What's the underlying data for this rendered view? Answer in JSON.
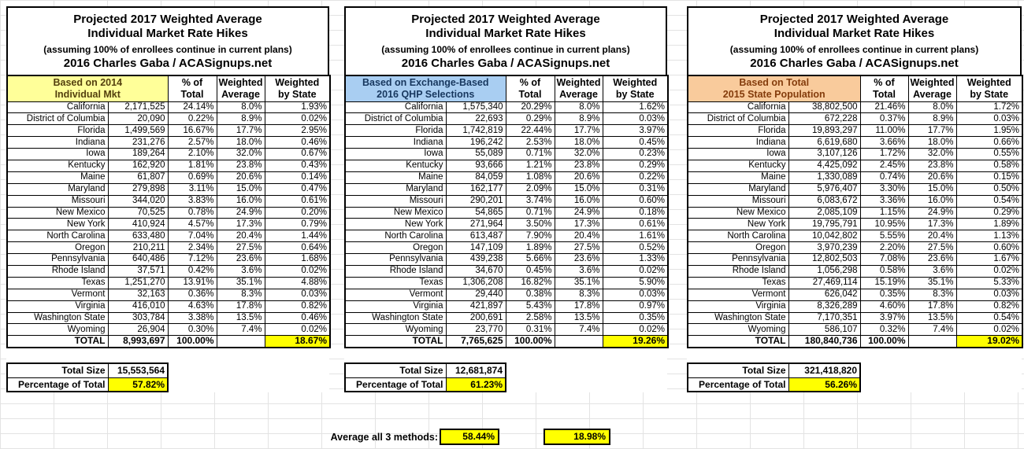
{
  "shared": {
    "title": [
      "Projected 2017 Weighted Average",
      "Individual Market Rate Hikes",
      "(assuming 100% of enrollees continue in current plans)",
      "2016 Charles Gaba / ACASignups.net"
    ],
    "columns": [
      [
        "% of",
        "Total"
      ],
      [
        "Weighted",
        "Average"
      ],
      [
        "Weighted",
        "by State"
      ]
    ],
    "total_size_label": "Total Size",
    "pct_of_total_label": "Percentage of Total"
  },
  "tables": [
    {
      "basis": [
        "Based on 2014",
        "Individual Mkt"
      ],
      "basis_bg": "#FFFF99",
      "basis_text": "#54400e",
      "rows": [
        [
          "California",
          "2,171,525",
          "24.14%",
          "8.0%",
          "1.93%"
        ],
        [
          "District of Columbia",
          "20,090",
          "0.22%",
          "8.9%",
          "0.02%"
        ],
        [
          "Florida",
          "1,499,569",
          "16.67%",
          "17.7%",
          "2.95%"
        ],
        [
          "Indiana",
          "231,276",
          "2.57%",
          "18.0%",
          "0.46%"
        ],
        [
          "Iowa",
          "189,264",
          "2.10%",
          "32.0%",
          "0.67%"
        ],
        [
          "Kentucky",
          "162,920",
          "1.81%",
          "23.8%",
          "0.43%"
        ],
        [
          "Maine",
          "61,807",
          "0.69%",
          "20.6%",
          "0.14%"
        ],
        [
          "Maryland",
          "279,898",
          "3.11%",
          "15.0%",
          "0.47%"
        ],
        [
          "Missouri",
          "344,020",
          "3.83%",
          "16.0%",
          "0.61%"
        ],
        [
          "New Mexico",
          "70,525",
          "0.78%",
          "24.9%",
          "0.20%"
        ],
        [
          "New York",
          "410,924",
          "4.57%",
          "17.3%",
          "0.79%"
        ],
        [
          "North Carolina",
          "633,480",
          "7.04%",
          "20.4%",
          "1.44%"
        ],
        [
          "Oregon",
          "210,211",
          "2.34%",
          "27.5%",
          "0.64%"
        ],
        [
          "Pennsylvania",
          "640,486",
          "7.12%",
          "23.6%",
          "1.68%"
        ],
        [
          "Rhode Island",
          "37,571",
          "0.42%",
          "3.6%",
          "0.02%"
        ],
        [
          "Texas",
          "1,251,270",
          "13.91%",
          "35.1%",
          "4.88%"
        ],
        [
          "Vermont",
          "32,163",
          "0.36%",
          "8.3%",
          "0.03%"
        ],
        [
          "Virginia",
          "416,010",
          "4.63%",
          "17.8%",
          "0.82%"
        ],
        [
          "Washington State",
          "303,784",
          "3.38%",
          "13.5%",
          "0.46%"
        ],
        [
          "Wyoming",
          "26,904",
          "0.30%",
          "7.4%",
          "0.02%"
        ]
      ],
      "total": [
        "TOTAL",
        "8,993,697",
        "100.00%",
        "",
        "18.67%"
      ],
      "total_size": "15,553,564",
      "pct_of_total": "57.82%"
    },
    {
      "basis": [
        "Based on Exchange-Based",
        "2016 QHP Selections"
      ],
      "basis_bg": "#A9CEF2",
      "basis_text": "#17375E",
      "rows": [
        [
          "California",
          "1,575,340",
          "20.29%",
          "8.0%",
          "1.62%"
        ],
        [
          "District of Columbia",
          "22,693",
          "0.29%",
          "8.9%",
          "0.03%"
        ],
        [
          "Florida",
          "1,742,819",
          "22.44%",
          "17.7%",
          "3.97%"
        ],
        [
          "Indiana",
          "196,242",
          "2.53%",
          "18.0%",
          "0.45%"
        ],
        [
          "Iowa",
          "55,089",
          "0.71%",
          "32.0%",
          "0.23%"
        ],
        [
          "Kentucky",
          "93,666",
          "1.21%",
          "23.8%",
          "0.29%"
        ],
        [
          "Maine",
          "84,059",
          "1.08%",
          "20.6%",
          "0.22%"
        ],
        [
          "Maryland",
          "162,177",
          "2.09%",
          "15.0%",
          "0.31%"
        ],
        [
          "Missouri",
          "290,201",
          "3.74%",
          "16.0%",
          "0.60%"
        ],
        [
          "New Mexico",
          "54,865",
          "0.71%",
          "24.9%",
          "0.18%"
        ],
        [
          "New York",
          "271,964",
          "3.50%",
          "17.3%",
          "0.61%"
        ],
        [
          "North Carolina",
          "613,487",
          "7.90%",
          "20.4%",
          "1.61%"
        ],
        [
          "Oregon",
          "147,109",
          "1.89%",
          "27.5%",
          "0.52%"
        ],
        [
          "Pennsylvania",
          "439,238",
          "5.66%",
          "23.6%",
          "1.33%"
        ],
        [
          "Rhode Island",
          "34,670",
          "0.45%",
          "3.6%",
          "0.02%"
        ],
        [
          "Texas",
          "1,306,208",
          "16.82%",
          "35.1%",
          "5.90%"
        ],
        [
          "Vermont",
          "29,440",
          "0.38%",
          "8.3%",
          "0.03%"
        ],
        [
          "Virginia",
          "421,897",
          "5.43%",
          "17.8%",
          "0.97%"
        ],
        [
          "Washington State",
          "200,691",
          "2.58%",
          "13.5%",
          "0.35%"
        ],
        [
          "Wyoming",
          "23,770",
          "0.31%",
          "7.4%",
          "0.02%"
        ]
      ],
      "total": [
        "TOTAL",
        "7,765,625",
        "100.00%",
        "",
        "19.26%"
      ],
      "total_size": "12,681,874",
      "pct_of_total": "61.23%"
    },
    {
      "basis": [
        "Based on Total",
        "2015 State Population"
      ],
      "basis_bg": "#F9CB9C",
      "basis_text": "#843C0C",
      "rows": [
        [
          "California",
          "38,802,500",
          "21.46%",
          "8.0%",
          "1.72%"
        ],
        [
          "District of Columbia",
          "672,228",
          "0.37%",
          "8.9%",
          "0.03%"
        ],
        [
          "Florida",
          "19,893,297",
          "11.00%",
          "17.7%",
          "1.95%"
        ],
        [
          "Indiana",
          "6,619,680",
          "3.66%",
          "18.0%",
          "0.66%"
        ],
        [
          "Iowa",
          "3,107,126",
          "1.72%",
          "32.0%",
          "0.55%"
        ],
        [
          "Kentucky",
          "4,425,092",
          "2.45%",
          "23.8%",
          "0.58%"
        ],
        [
          "Maine",
          "1,330,089",
          "0.74%",
          "20.6%",
          "0.15%"
        ],
        [
          "Maryland",
          "5,976,407",
          "3.30%",
          "15.0%",
          "0.50%"
        ],
        [
          "Missouri",
          "6,083,672",
          "3.36%",
          "16.0%",
          "0.54%"
        ],
        [
          "New Mexico",
          "2,085,109",
          "1.15%",
          "24.9%",
          "0.29%"
        ],
        [
          "New York",
          "19,795,791",
          "10.95%",
          "17.3%",
          "1.89%"
        ],
        [
          "North Carolina",
          "10,042,802",
          "5.55%",
          "20.4%",
          "1.13%"
        ],
        [
          "Oregon",
          "3,970,239",
          "2.20%",
          "27.5%",
          "0.60%"
        ],
        [
          "Pennsylvania",
          "12,802,503",
          "7.08%",
          "23.6%",
          "1.67%"
        ],
        [
          "Rhode Island",
          "1,056,298",
          "0.58%",
          "3.6%",
          "0.02%"
        ],
        [
          "Texas",
          "27,469,114",
          "15.19%",
          "35.1%",
          "5.33%"
        ],
        [
          "Vermont",
          "626,042",
          "0.35%",
          "8.3%",
          "0.03%"
        ],
        [
          "Virginia",
          "8,326,289",
          "4.60%",
          "17.8%",
          "0.82%"
        ],
        [
          "Washington State",
          "7,170,351",
          "3.97%",
          "13.5%",
          "0.54%"
        ],
        [
          "Wyoming",
          "586,107",
          "0.32%",
          "7.4%",
          "0.02%"
        ]
      ],
      "total": [
        "TOTAL",
        "180,840,736",
        "100.00%",
        "",
        "19.02%"
      ],
      "total_size": "321,418,820",
      "pct_of_total": "56.26%"
    }
  ],
  "footer": {
    "label": "Average all 3 methods:",
    "value1": "58.44%",
    "value2": "18.98%"
  },
  "colors": {
    "highlight": "#FFFF00",
    "gridline": "#E3E3E3",
    "table_border": "#000000"
  }
}
